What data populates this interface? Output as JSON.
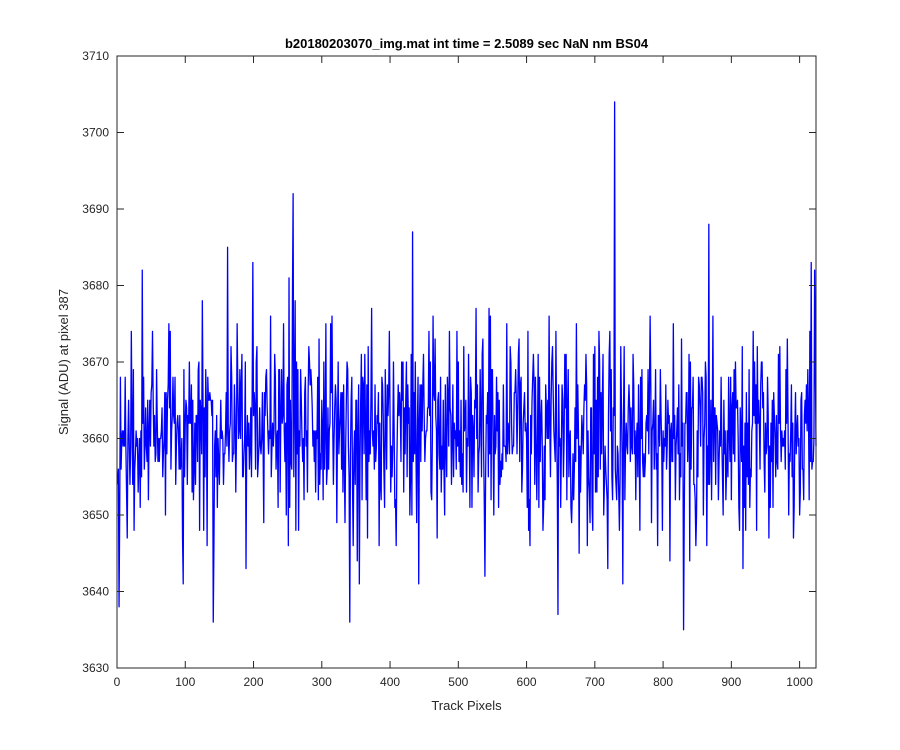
{
  "chart_data": {
    "type": "line",
    "title": "b20180203070_img.mat int time = 2.5089 sec  NaN nm BS04",
    "xlabel": "Track Pixels",
    "ylabel": "Signal (ADU) at pixel 387",
    "xlim": [
      0,
      1024
    ],
    "ylim": [
      3630,
      3710
    ],
    "xticks": [
      0,
      100,
      200,
      300,
      400,
      500,
      600,
      700,
      800,
      900,
      1000
    ],
    "yticks": [
      3630,
      3640,
      3650,
      3660,
      3670,
      3680,
      3690,
      3700,
      3710
    ],
    "grid": false,
    "legend": "none",
    "series": [
      {
        "color": "#0000ff",
        "x_start": 1,
        "x_step": 1,
        "approx_mean": 3661,
        "approx_noise_std": 7,
        "notable_points": [
          {
            "x": 3,
            "y": 3638
          },
          {
            "x": 37,
            "y": 3682
          },
          {
            "x": 141,
            "y": 3636
          },
          {
            "x": 162,
            "y": 3685
          },
          {
            "x": 199,
            "y": 3683
          },
          {
            "x": 258,
            "y": 3692
          },
          {
            "x": 341,
            "y": 3636
          },
          {
            "x": 433,
            "y": 3687
          },
          {
            "x": 646,
            "y": 3637
          },
          {
            "x": 729,
            "y": 3704
          },
          {
            "x": 830,
            "y": 3635
          },
          {
            "x": 867,
            "y": 3688
          },
          {
            "x": 1017,
            "y": 3683
          },
          {
            "x": 1022,
            "y": 3682
          }
        ]
      }
    ]
  }
}
